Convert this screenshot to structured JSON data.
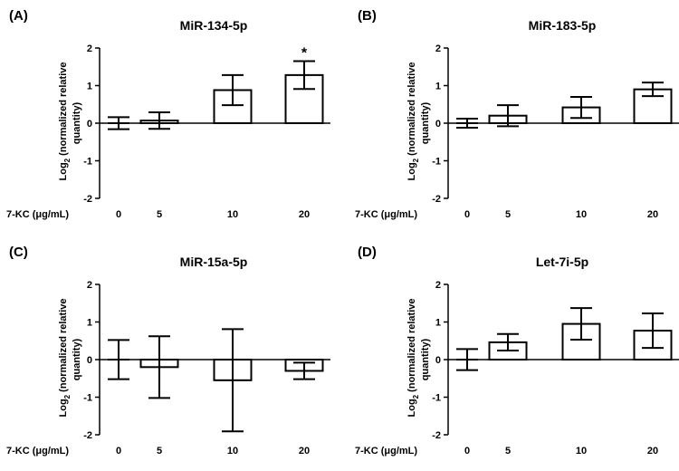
{
  "chart_data": [
    {
      "type": "bar",
      "panel_label": "(A)",
      "title": "MiR-134-5p",
      "ylabel_main": "Log",
      "ylabel_sub": "2",
      "ylabel_rest": " (normalized relative",
      "ylabel_line2": "quantity)",
      "xlabel": "7-KC (μg/mL)",
      "categories": [
        "0",
        "5",
        "10",
        "20"
      ],
      "values": [
        0.0,
        0.07,
        0.88,
        1.28
      ],
      "errors": [
        0.16,
        0.22,
        0.4,
        0.37
      ],
      "significance": [
        "",
        "",
        "",
        "*"
      ],
      "ylim": [
        -2,
        2
      ],
      "yticks": [
        "2",
        "1",
        "0",
        "-1",
        "-2"
      ]
    },
    {
      "type": "bar",
      "panel_label": "(B)",
      "title": "MiR-183-5p",
      "ylabel_main": "Log",
      "ylabel_sub": "2",
      "ylabel_rest": " (normalized relative",
      "ylabel_line2": "quantity)",
      "xlabel": "7-KC (μg/mL)",
      "categories": [
        "0",
        "5",
        "10",
        "20"
      ],
      "values": [
        0.0,
        0.2,
        0.42,
        0.9
      ],
      "errors": [
        0.12,
        0.28,
        0.28,
        0.18
      ],
      "significance": [
        "",
        "",
        "",
        ""
      ],
      "ylim": [
        -2,
        2
      ],
      "yticks": [
        "2",
        "1",
        "0",
        "-1",
        "-2"
      ]
    },
    {
      "type": "bar",
      "panel_label": "(C)",
      "title": "MiR-15a-5p",
      "ylabel_main": "Log",
      "ylabel_sub": "2",
      "ylabel_rest": " (normalized relative",
      "ylabel_line2": "quantity)",
      "xlabel": "7-KC (μg/mL)",
      "categories": [
        "0",
        "5",
        "10",
        "20"
      ],
      "values": [
        0.0,
        -0.2,
        -0.55,
        -0.3
      ],
      "errors": [
        0.52,
        0.82,
        1.36,
        0.22
      ],
      "significance": [
        "",
        "",
        "",
        ""
      ],
      "ylim": [
        -2,
        2
      ],
      "yticks": [
        "2",
        "1",
        "0",
        "-1",
        "-2"
      ]
    },
    {
      "type": "bar",
      "panel_label": "(D)",
      "title": "Let-7i-5p",
      "ylabel_main": "Log",
      "ylabel_sub": "2",
      "ylabel_rest": " (normalized relative",
      "ylabel_line2": "quantity)",
      "xlabel": "7-KC (μg/mL)",
      "categories": [
        "0",
        "5",
        "10",
        "20"
      ],
      "values": [
        0.0,
        0.46,
        0.95,
        0.77
      ],
      "errors": [
        0.28,
        0.22,
        0.42,
        0.46
      ],
      "significance": [
        "",
        "",
        "",
        ""
      ],
      "ylim": [
        -2,
        2
      ],
      "yticks": [
        "2",
        "1",
        "0",
        "-1",
        "-2"
      ]
    }
  ]
}
